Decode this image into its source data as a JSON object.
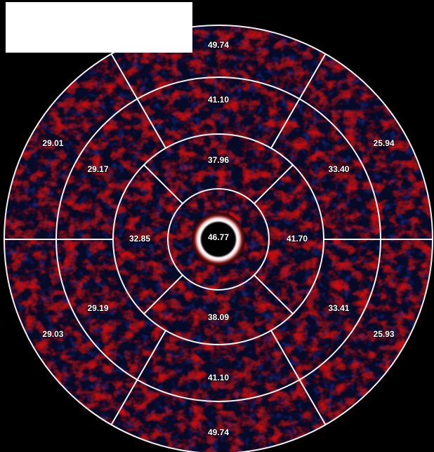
{
  "bullseye": {
    "colors": {
      "background": "#000000",
      "field_dark": "#050a26",
      "signal_hot": "#d01010",
      "signal_cool": "#1a2a8a",
      "grid": "#ffffff"
    },
    "rings": [
      {
        "ring": "outer",
        "segments": [
          {
            "position": "top",
            "value": "49.74"
          },
          {
            "position": "upper-right",
            "value": "25.94"
          },
          {
            "position": "lower-right",
            "value": "25.93"
          },
          {
            "position": "bottom",
            "value": "49.74"
          },
          {
            "position": "lower-left",
            "value": "29.03"
          },
          {
            "position": "upper-left",
            "value": "29.01"
          }
        ]
      },
      {
        "ring": "middle",
        "segments": [
          {
            "position": "top",
            "value": "41.10"
          },
          {
            "position": "upper-right",
            "value": "33.40"
          },
          {
            "position": "lower-right",
            "value": "33.41"
          },
          {
            "position": "bottom",
            "value": "41.10"
          },
          {
            "position": "lower-left",
            "value": "29.19"
          },
          {
            "position": "upper-left",
            "value": "29.17"
          }
        ]
      },
      {
        "ring": "inner",
        "segments": [
          {
            "position": "top",
            "value": "37.96"
          },
          {
            "position": "right",
            "value": "41.70"
          },
          {
            "position": "bottom",
            "value": "38.09"
          },
          {
            "position": "left",
            "value": "32.85"
          }
        ]
      },
      {
        "ring": "apex",
        "segments": [
          {
            "position": "center",
            "value": "46.77"
          }
        ]
      }
    ]
  }
}
